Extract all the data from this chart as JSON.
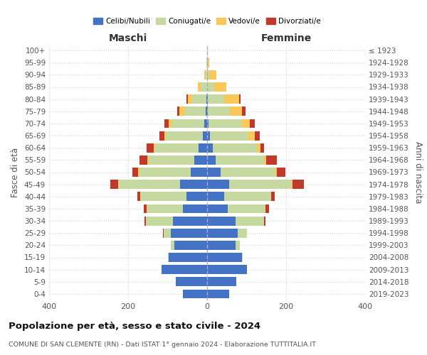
{
  "age_groups": [
    "0-4",
    "5-9",
    "10-14",
    "15-19",
    "20-24",
    "25-29",
    "30-34",
    "35-39",
    "40-44",
    "45-49",
    "50-54",
    "55-59",
    "60-64",
    "65-69",
    "70-74",
    "75-79",
    "80-84",
    "85-89",
    "90-94",
    "95-99",
    "100+"
  ],
  "birth_years": [
    "2019-2023",
    "2014-2018",
    "2009-2013",
    "2004-2008",
    "1999-2003",
    "1994-1998",
    "1989-1993",
    "1984-1988",
    "1979-1983",
    "1974-1978",
    "1969-1973",
    "1964-1968",
    "1959-1963",
    "1954-1958",
    "1949-1953",
    "1944-1948",
    "1939-1943",
    "1934-1938",
    "1929-1933",
    "1924-1928",
    "≤ 1923"
  ],
  "male": {
    "celibi": [
      62,
      80,
      115,
      98,
      83,
      92,
      87,
      62,
      52,
      68,
      42,
      32,
      22,
      10,
      8,
      4,
      2,
      0,
      0,
      0,
      0
    ],
    "coniugati": [
      0,
      0,
      0,
      1,
      8,
      18,
      68,
      90,
      115,
      155,
      130,
      115,
      110,
      95,
      82,
      52,
      35,
      16,
      4,
      1,
      0
    ],
    "vedovi": [
      0,
      0,
      0,
      0,
      0,
      0,
      0,
      1,
      2,
      2,
      3,
      4,
      4,
      4,
      8,
      14,
      12,
      8,
      4,
      1,
      0
    ],
    "divorziati": [
      0,
      0,
      0,
      0,
      0,
      1,
      4,
      7,
      8,
      20,
      15,
      20,
      18,
      12,
      10,
      6,
      4,
      0,
      0,
      0,
      0
    ]
  },
  "female": {
    "nubili": [
      55,
      73,
      100,
      88,
      72,
      78,
      72,
      52,
      44,
      55,
      35,
      22,
      15,
      7,
      4,
      2,
      1,
      0,
      0,
      0,
      0
    ],
    "coniugate": [
      0,
      0,
      0,
      2,
      10,
      22,
      72,
      96,
      118,
      160,
      138,
      122,
      112,
      98,
      85,
      55,
      42,
      18,
      6,
      2,
      0
    ],
    "vedove": [
      0,
      0,
      0,
      0,
      0,
      0,
      0,
      0,
      1,
      2,
      4,
      6,
      8,
      15,
      20,
      32,
      38,
      30,
      18,
      4,
      2
    ],
    "divorziate": [
      0,
      0,
      0,
      0,
      0,
      1,
      3,
      8,
      9,
      28,
      22,
      26,
      10,
      14,
      12,
      8,
      4,
      1,
      0,
      0,
      0
    ]
  },
  "colors": {
    "celibi": "#4472C4",
    "coniugati": "#C6D9A0",
    "vedovi": "#FAC858",
    "divorziati": "#C0392B"
  },
  "title": "Popolazione per età, sesso e stato civile - 2024",
  "subtitle": "COMUNE DI SAN CLEMENTE (RN) - Dati ISTAT 1° gennaio 2024 - Elaborazione TUTTITALIA.IT",
  "xlabel_left": "Maschi",
  "xlabel_right": "Femmine",
  "ylabel_left": "Fasce di età",
  "ylabel_right": "Anni di nascita",
  "xlim": 400,
  "background_color": "#ffffff",
  "grid_color": "#c8c8c8"
}
